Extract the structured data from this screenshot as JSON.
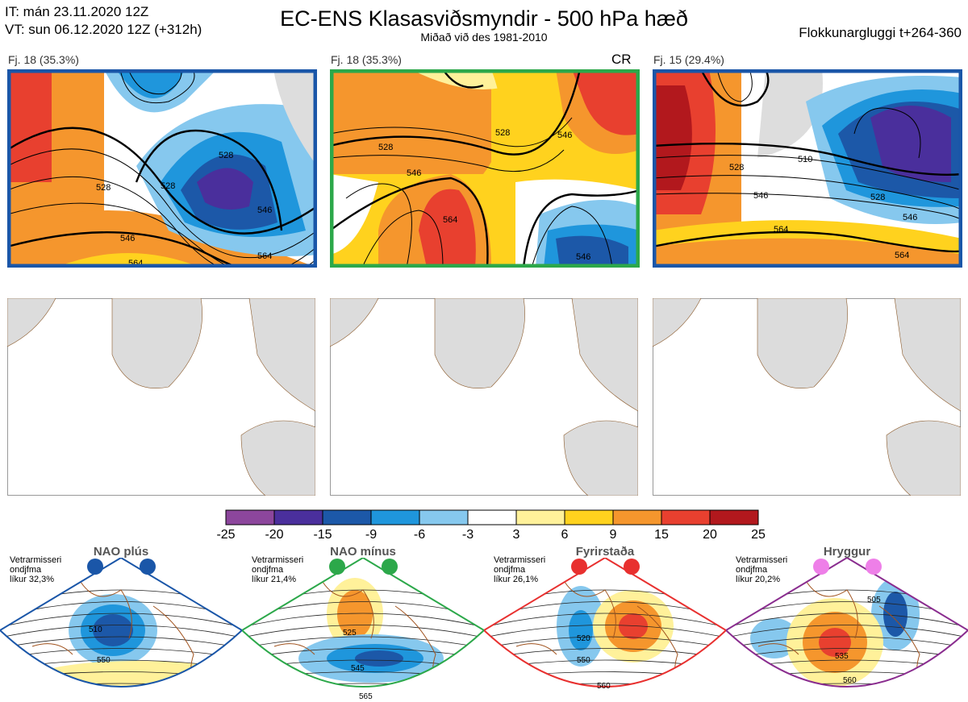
{
  "header": {
    "it_line": "IT: mán 23.11.2020 12Z",
    "vt_line": "VT: sun 06.12.2020 12Z  (+312h)",
    "title": "EC-ENS Klasasviðsmyndir - 500 hPa hæð",
    "subtitle": "Miðað við des 1981-2010",
    "window": "Flokkunargluggi t+264-360"
  },
  "panels": [
    {
      "label": "Fj. 18 (35.3%)",
      "border": "#1a56a8",
      "tag": "",
      "contours": [
        "528",
        "528",
        "546",
        "564",
        "546",
        "564",
        "528"
      ]
    },
    {
      "label": "Fj. 18 (35.3%)",
      "border": "#2ca84a",
      "tag": "CR",
      "contours": [
        "528",
        "546",
        "564",
        "546",
        "528",
        "546"
      ]
    },
    {
      "label": "Fj. 15 (29.4%)",
      "border": "#1a56a8",
      "tag": "",
      "contours": [
        "528",
        "510",
        "546",
        "528",
        "564",
        "564",
        "546"
      ]
    }
  ],
  "colorbar": {
    "ticks": [
      "-25",
      "-20",
      "-15",
      "-9",
      "-6",
      "-3",
      "3",
      "6",
      "9",
      "15",
      "20",
      "25"
    ],
    "colors": [
      "#8c469c",
      "#4a2f9c",
      "#1c58a8",
      "#1f96dc",
      "#86c8ee",
      "#ffffff",
      "#fff19a",
      "#ffd21e",
      "#f5962d",
      "#e8402f",
      "#b2181d"
    ]
  },
  "regimes": [
    {
      "name": "NAO plús",
      "info": [
        "Vetrarmisseri",
        "ondjfma",
        "líkur 32,3%"
      ],
      "color": "#1a56a8",
      "dot": "#1a56a8",
      "contours": [
        "510",
        "550"
      ]
    },
    {
      "name": "NAO mínus",
      "info": [
        "Vetrarmisseri",
        "ondjfma",
        "líkur 21,4%"
      ],
      "color": "#2ca84a",
      "dot": "#2ca84a",
      "contours": [
        "525",
        "545",
        "565"
      ]
    },
    {
      "name": "Fyrirstaða",
      "info": [
        "Vetrarmisseri",
        "ondjfma",
        "líkur 26,1%"
      ],
      "color": "#e8302f",
      "dot": "#e8302f",
      "contours": [
        "520",
        "550",
        "560"
      ]
    },
    {
      "name": "Hryggur",
      "info": [
        "Vetrarmisseri",
        "ondjfma",
        "líkur 20,2%"
      ],
      "color": "#8a2d8f",
      "dot": "#ee7fe8",
      "contours": [
        "505",
        "535",
        "560"
      ]
    }
  ]
}
